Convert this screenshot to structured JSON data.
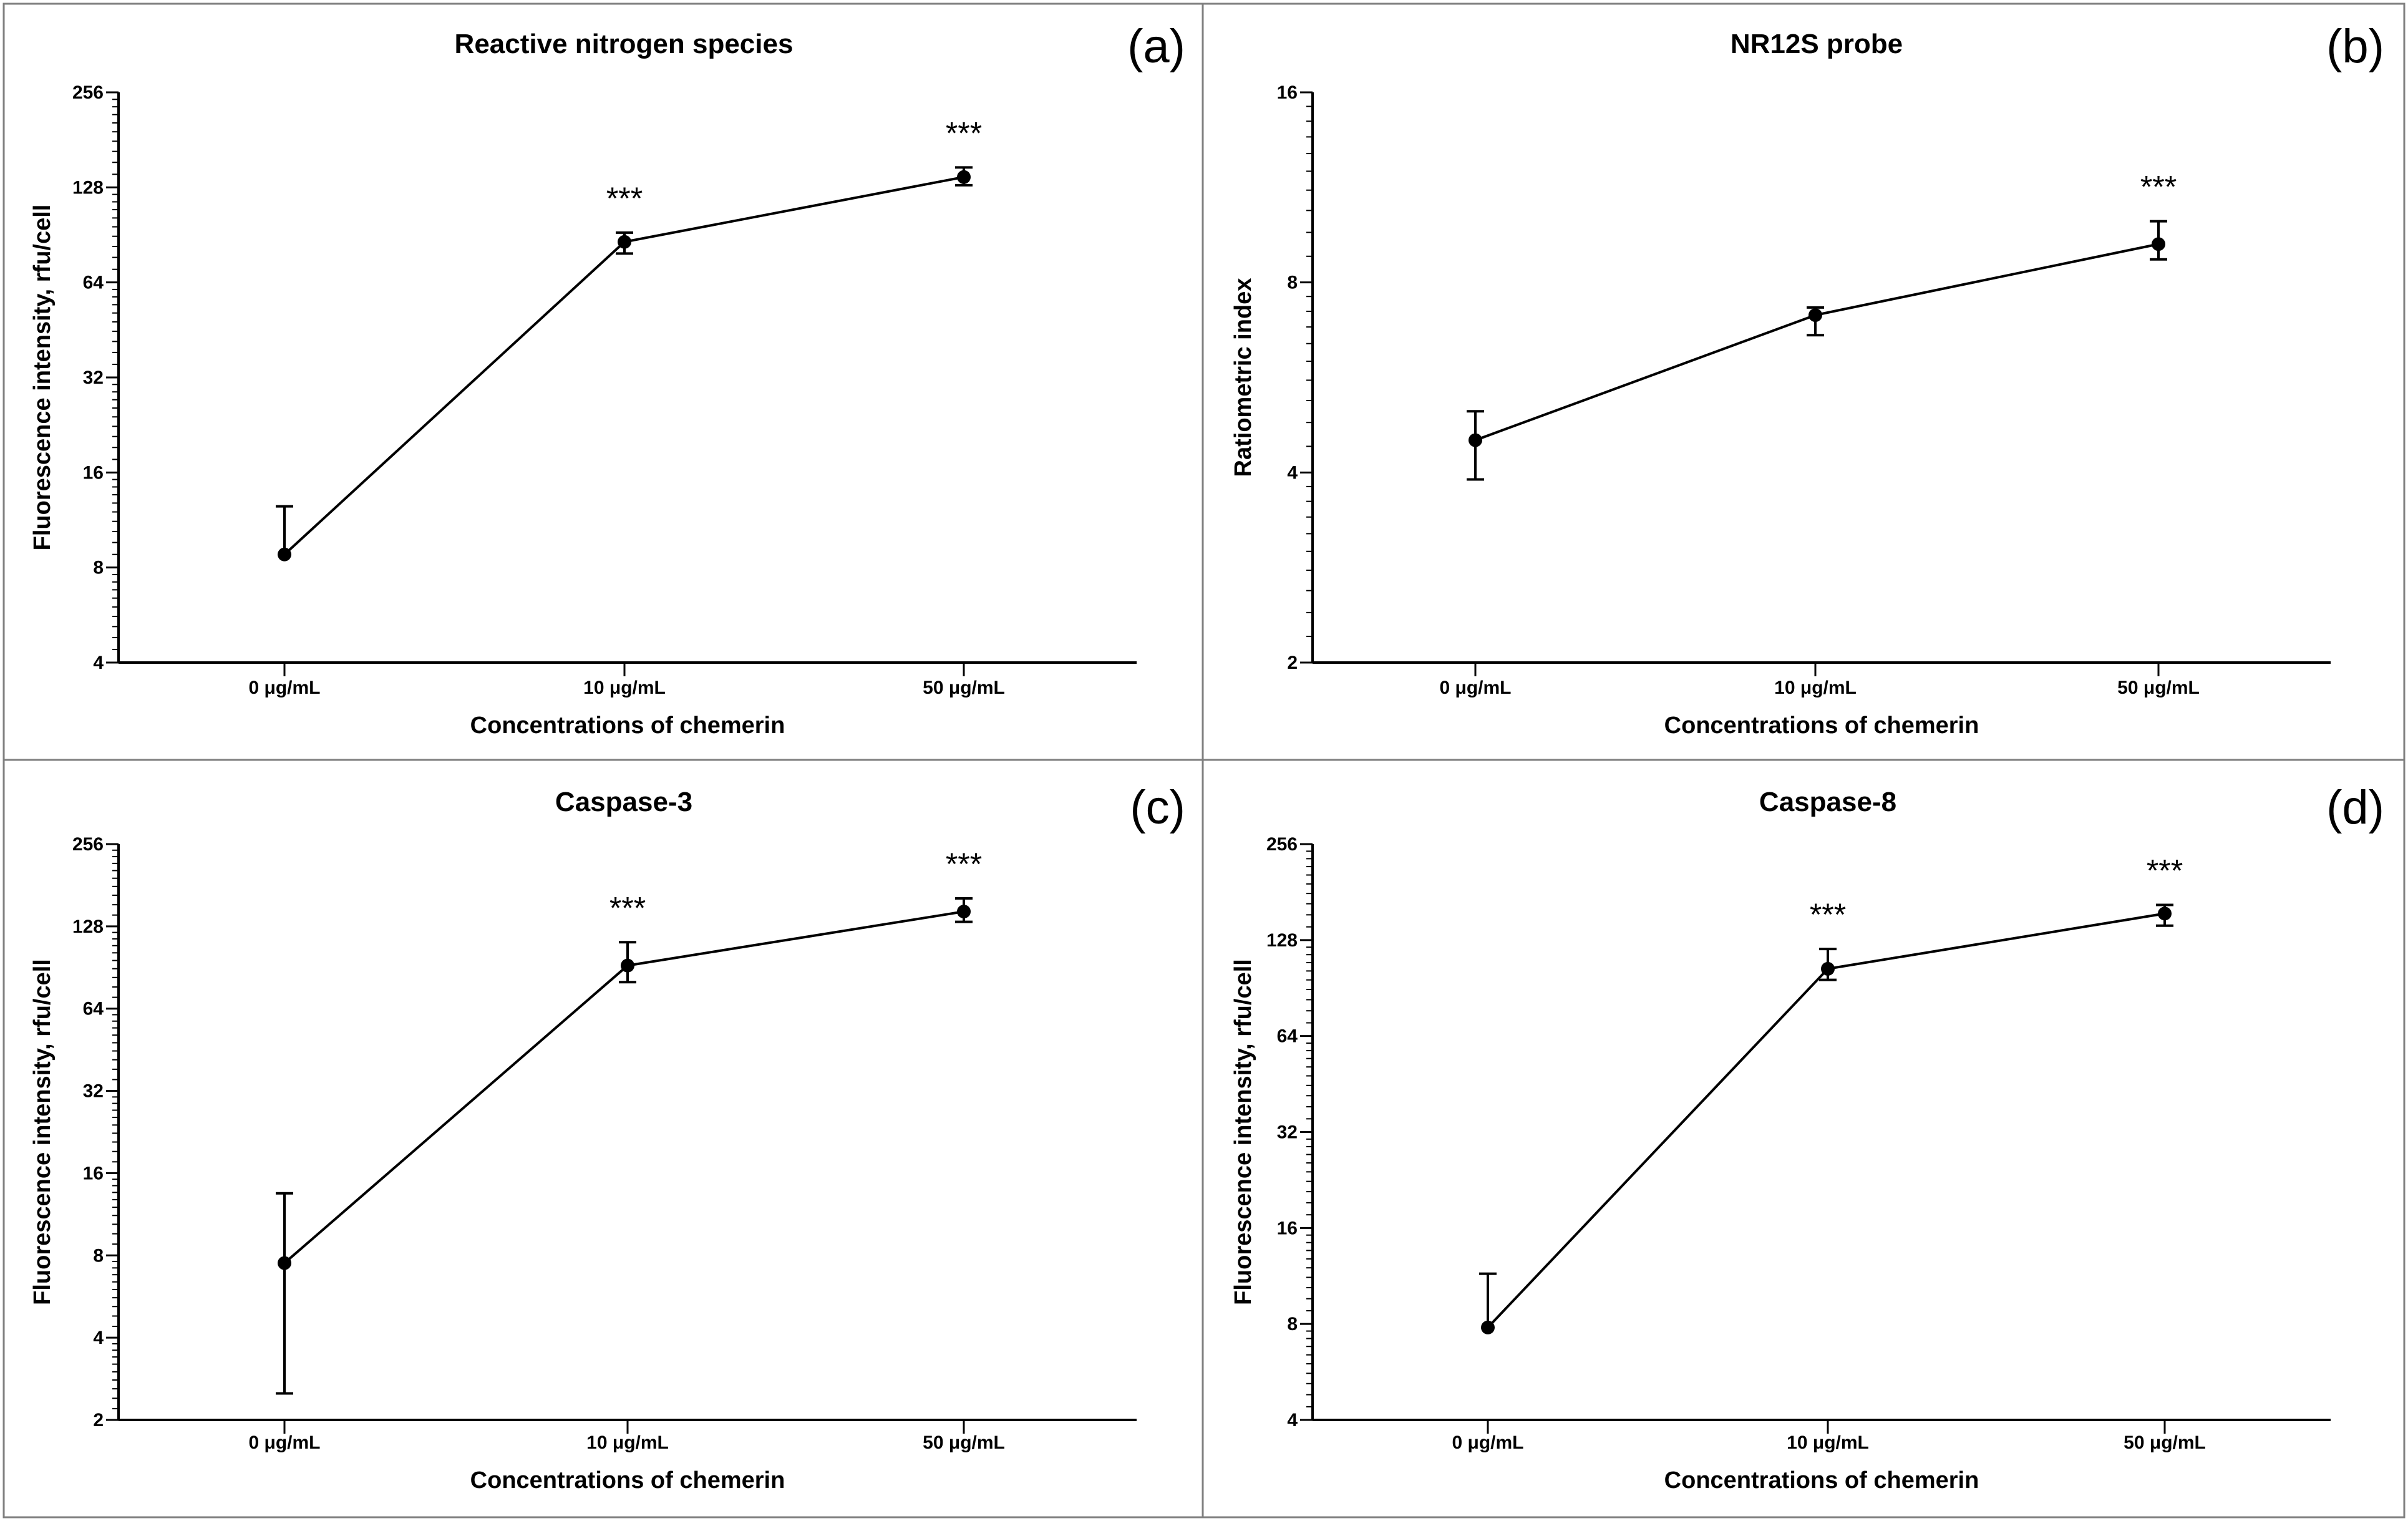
{
  "chart_data": [
    {
      "type": "line",
      "panel_label": "(a)",
      "title": "Reactive nitrogen species",
      "xlabel": "Concentrations of chemerin",
      "ylabel": "Fluorescence intensity, rfu/cell",
      "y_scale": "log2",
      "ylim": [
        4,
        256
      ],
      "y_ticks": [
        "4",
        "8",
        "16",
        "32",
        "64",
        "128",
        "256"
      ],
      "y_tick_values": [
        4,
        8,
        16,
        32,
        64,
        128,
        256
      ],
      "categories": [
        "0 μg/mL",
        "10 μg/mL",
        "50 μg/mL"
      ],
      "values": [
        8.8,
        86,
        138
      ],
      "error_upper": [
        12.5,
        92,
        148
      ],
      "error_lower": [
        8.8,
        79,
        130
      ],
      "annotations": [
        "",
        "***",
        "***"
      ]
    },
    {
      "type": "line",
      "panel_label": "(b)",
      "title": "NR12S probe",
      "xlabel": "Concentrations of chemerin",
      "ylabel": "Ratiometric index",
      "y_scale": "log2",
      "ylim": [
        2,
        16
      ],
      "y_ticks": [
        "2",
        "4",
        "8",
        "16"
      ],
      "y_tick_values": [
        2,
        4,
        8,
        16
      ],
      "categories": [
        "0 μg/mL",
        "10 μg/mL",
        "50 μg/mL"
      ],
      "values": [
        4.5,
        7.1,
        9.2
      ],
      "error_upper": [
        5.0,
        7.3,
        10.0
      ],
      "error_lower": [
        3.9,
        6.6,
        8.7
      ],
      "annotations": [
        "",
        "",
        "***"
      ]
    },
    {
      "type": "line",
      "panel_label": "(c)",
      "title": "Caspase-3",
      "xlabel": "Concentrations of chemerin",
      "ylabel": "Fluorescence intensity, rfu/cell",
      "y_scale": "log2",
      "ylim": [
        2,
        256
      ],
      "y_ticks": [
        "2",
        "4",
        "8",
        "16",
        "32",
        "64",
        "128",
        "256"
      ],
      "y_tick_values": [
        2,
        4,
        8,
        16,
        32,
        64,
        128,
        256
      ],
      "categories": [
        "0 μg/mL",
        "10 μg/mL",
        "50 μg/mL"
      ],
      "values": [
        7.5,
        92,
        145
      ],
      "error_upper": [
        13.5,
        112,
        162
      ],
      "error_lower": [
        2.5,
        80,
        133
      ],
      "annotations": [
        "",
        "***",
        "***"
      ]
    },
    {
      "type": "line",
      "panel_label": "(d)",
      "title": "Caspase-8",
      "xlabel": "Concentrations of chemerin",
      "ylabel": "Fluorescence intensity, rfu/cell",
      "y_scale": "log2",
      "ylim": [
        4,
        256
      ],
      "y_ticks": [
        "4",
        "8",
        "16",
        "32",
        "64",
        "128",
        "256"
      ],
      "y_tick_values": [
        4,
        8,
        16,
        32,
        64,
        128,
        256
      ],
      "categories": [
        "0 μg/mL",
        "10 μg/mL",
        "50 μg/mL"
      ],
      "values": [
        7.8,
        104,
        155
      ],
      "error_upper": [
        11.5,
        120,
        165
      ],
      "error_lower": [
        7.8,
        96,
        142
      ],
      "annotations": [
        "",
        "***",
        "***"
      ]
    }
  ]
}
